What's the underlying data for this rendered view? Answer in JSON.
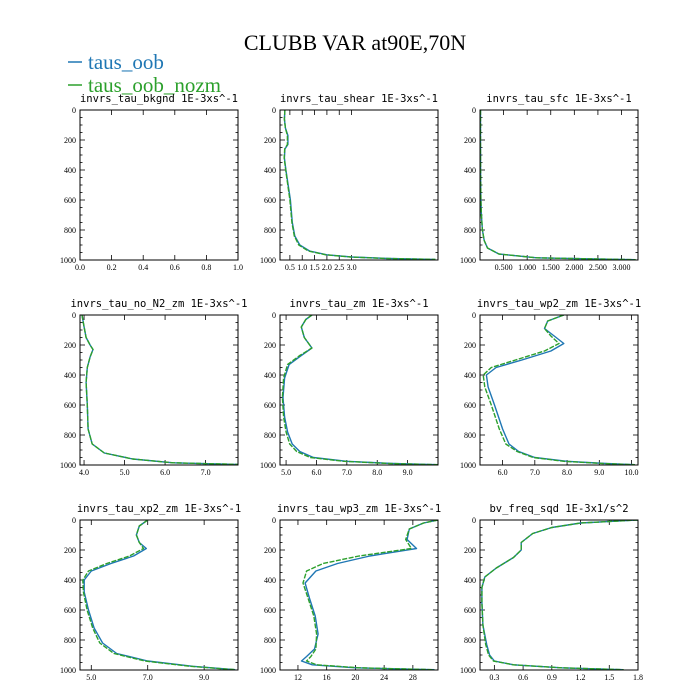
{
  "title": "CLUBB VAR at90E,70N",
  "legend": [
    {
      "label": "taus_oob",
      "color": "#1f77b4"
    },
    {
      "label": "taus_oob_nozm",
      "color": "#2ca02c"
    }
  ],
  "chart_data": [
    {
      "type": "line",
      "title": "invrs_tau_bkgnd   1E-3xs^-1",
      "xlim": [
        0.0,
        1.0
      ],
      "ylim": [
        0,
        1000
      ],
      "y_inverted": true,
      "xtick_labels": [
        {
          "v": 0.0,
          "t": "0.0"
        },
        {
          "v": 0.2,
          "t": "0.2"
        },
        {
          "v": 0.4,
          "t": "0.4"
        },
        {
          "v": 0.6,
          "t": "0.6"
        },
        {
          "v": 0.8,
          "t": "0.8"
        },
        {
          "v": 1.0,
          "t": "1.0"
        }
      ],
      "ytick_labels": [
        0,
        200,
        400,
        600,
        800,
        1000
      ],
      "series": [
        {
          "name": "taus_oob",
          "x": [],
          "y": []
        },
        {
          "name": "taus_oob_nozm",
          "x": [],
          "y": []
        }
      ]
    },
    {
      "type": "line",
      "title": "invrs_tau_shear   1E-3xs^-1",
      "xlim": [
        0.1,
        6.5
      ],
      "ylim": [
        0,
        1000
      ],
      "y_inverted": true,
      "xtick_labels": [
        {
          "v": 0.5,
          "t": "0.5"
        },
        {
          "v": 1.0,
          "t": "1.0"
        },
        {
          "v": 1.5,
          "t": "1.5"
        },
        {
          "v": 2.0,
          "t": "2.0"
        },
        {
          "v": 2.5,
          "t": "2.5"
        },
        {
          "v": 3.0,
          "t": "3.0"
        }
      ],
      "ytick_labels": [
        0,
        200,
        400,
        600,
        800,
        1000
      ],
      "series": [
        {
          "name": "taus_oob",
          "x": [
            0.3,
            0.28,
            0.32,
            0.42,
            0.42,
            0.3,
            0.28,
            0.34,
            0.52,
            0.6,
            0.7,
            0.9,
            1.3,
            2.0,
            3.0,
            4.5,
            6.4
          ],
          "y": [
            0,
            60,
            120,
            170,
            230,
            260,
            320,
            400,
            600,
            750,
            840,
            900,
            940,
            965,
            980,
            990,
            996
          ]
        },
        {
          "name": "taus_oob_nozm",
          "x": [
            0.3,
            0.28,
            0.32,
            0.4,
            0.4,
            0.29,
            0.27,
            0.33,
            0.5,
            0.58,
            0.68,
            0.86,
            1.25,
            1.95,
            2.95,
            4.4,
            6.4
          ],
          "y": [
            0,
            60,
            120,
            170,
            230,
            260,
            320,
            400,
            600,
            750,
            840,
            900,
            940,
            965,
            980,
            990,
            996
          ]
        }
      ]
    },
    {
      "type": "line",
      "title": "invrs_tau_sfc   1E-3xs^-1",
      "xlim": [
        0.0,
        3.35
      ],
      "ylim": [
        0,
        1000
      ],
      "y_inverted": true,
      "xtick_labels": [
        {
          "v": 0.5,
          "t": "0.500"
        },
        {
          "v": 1.0,
          "t": "1.000"
        },
        {
          "v": 1.5,
          "t": "1.500"
        },
        {
          "v": 2.0,
          "t": "2.000"
        },
        {
          "v": 2.5,
          "t": "2.500"
        },
        {
          "v": 3.0,
          "t": "3.000"
        }
      ],
      "ytick_labels": [
        0,
        200,
        400,
        600,
        800,
        1000
      ],
      "series": [
        {
          "name": "taus_oob",
          "x": [
            0.01,
            0.01,
            0.015,
            0.02,
            0.03,
            0.05,
            0.09,
            0.16,
            0.4,
            1.2,
            3.3
          ],
          "y": [
            0,
            300,
            500,
            600,
            700,
            800,
            870,
            920,
            960,
            985,
            998
          ]
        },
        {
          "name": "taus_oob_nozm",
          "x": [
            0.01,
            0.01,
            0.015,
            0.02,
            0.03,
            0.05,
            0.09,
            0.16,
            0.4,
            1.2,
            3.3
          ],
          "y": [
            0,
            300,
            500,
            600,
            700,
            800,
            870,
            920,
            960,
            985,
            998
          ]
        }
      ]
    },
    {
      "type": "line",
      "title": "invrs_tau_no_N2_zm   1E-3xs^-1",
      "xlim": [
        3.9,
        7.8
      ],
      "ylim": [
        0,
        1000
      ],
      "y_inverted": true,
      "xtick_labels": [
        {
          "v": 4.0,
          "t": "4.0"
        },
        {
          "v": 5.0,
          "t": "5.0"
        },
        {
          "v": 6.0,
          "t": "6.0"
        },
        {
          "v": 7.0,
          "t": "7.0"
        }
      ],
      "ytick_labels": [
        0,
        200,
        400,
        600,
        800,
        1000
      ],
      "series": [
        {
          "name": "taus_oob",
          "x": [
            3.95,
            4.0,
            4.05,
            4.15,
            4.22,
            4.15,
            4.08,
            4.05,
            4.08,
            4.1,
            4.2,
            4.5,
            5.2,
            6.2,
            7.8
          ],
          "y": [
            0,
            80,
            150,
            200,
            230,
            280,
            350,
            450,
            600,
            760,
            860,
            920,
            960,
            985,
            996
          ]
        },
        {
          "name": "taus_oob_nozm",
          "x": [
            3.95,
            4.0,
            4.05,
            4.15,
            4.22,
            4.15,
            4.08,
            4.05,
            4.08,
            4.1,
            4.2,
            4.5,
            5.2,
            6.2,
            7.8
          ],
          "y": [
            0,
            80,
            150,
            200,
            230,
            280,
            350,
            450,
            600,
            760,
            860,
            920,
            960,
            985,
            996
          ]
        }
      ]
    },
    {
      "type": "line",
      "title": "invrs_tau_zm   1E-3xs^-1",
      "xlim": [
        4.8,
        10.0
      ],
      "ylim": [
        0,
        1000
      ],
      "y_inverted": true,
      "xtick_labels": [
        {
          "v": 5.0,
          "t": "5.0"
        },
        {
          "v": 6.0,
          "t": "6.0"
        },
        {
          "v": 7.0,
          "t": "7.0"
        },
        {
          "v": 8.0,
          "t": "8.0"
        },
        {
          "v": 9.0,
          "t": "9.0"
        }
      ],
      "ytick_labels": [
        0,
        200,
        400,
        600,
        800,
        1000
      ],
      "series": [
        {
          "name": "taus_oob",
          "x": [
            5.85,
            5.65,
            5.5,
            5.6,
            5.85,
            5.5,
            5.1,
            4.95,
            4.9,
            4.95,
            5.05,
            5.2,
            5.45,
            5.9,
            7.0,
            8.5,
            10.0
          ],
          "y": [
            0,
            30,
            80,
            150,
            220,
            270,
            330,
            420,
            550,
            680,
            780,
            860,
            910,
            950,
            975,
            990,
            998
          ]
        },
        {
          "name": "taus_oob_nozm",
          "x": [
            5.85,
            5.65,
            5.5,
            5.6,
            5.85,
            5.45,
            5.05,
            4.92,
            4.88,
            4.92,
            5.0,
            5.12,
            5.35,
            5.8,
            6.9,
            8.4,
            10.0
          ],
          "y": [
            0,
            30,
            80,
            150,
            220,
            270,
            330,
            420,
            550,
            680,
            780,
            860,
            910,
            950,
            975,
            990,
            998
          ]
        }
      ]
    },
    {
      "type": "line",
      "title": "invrs_tau_wp2_zm   1E-3xs^-1",
      "xlim": [
        5.3,
        10.2
      ],
      "ylim": [
        0,
        1000
      ],
      "y_inverted": true,
      "xtick_labels": [
        {
          "v": 6.0,
          "t": "6.0"
        },
        {
          "v": 7.0,
          "t": "7.0"
        },
        {
          "v": 8.0,
          "t": "8.0"
        },
        {
          "v": 9.0,
          "t": "9.0"
        },
        {
          "v": 10.0,
          "t": "10.0"
        }
      ],
      "ytick_labels": [
        0,
        200,
        400,
        600,
        800,
        1000
      ],
      "series": [
        {
          "name": "taus_oob",
          "x": [
            7.9,
            7.4,
            7.3,
            7.6,
            7.9,
            7.5,
            6.6,
            5.8,
            5.5,
            5.55,
            5.75,
            6.0,
            6.2,
            6.5,
            7.0,
            8.0,
            9.2,
            10.1
          ],
          "y": [
            0,
            40,
            90,
            140,
            190,
            240,
            300,
            350,
            400,
            480,
            600,
            760,
            860,
            910,
            950,
            975,
            990,
            998
          ]
        },
        {
          "name": "taus_oob_nozm",
          "x": [
            7.9,
            7.4,
            7.3,
            7.5,
            7.75,
            7.3,
            6.4,
            5.65,
            5.4,
            5.45,
            5.65,
            5.9,
            6.1,
            6.45,
            6.95,
            7.9,
            9.1,
            10.1
          ],
          "y": [
            0,
            40,
            90,
            140,
            190,
            240,
            300,
            350,
            400,
            480,
            600,
            760,
            860,
            910,
            950,
            975,
            990,
            998
          ]
        }
      ]
    },
    {
      "type": "line",
      "title": "invrs_tau_xp2_zm   1E-3xs^-1",
      "xlim": [
        4.6,
        10.2
      ],
      "ylim": [
        0,
        1000
      ],
      "y_inverted": true,
      "xtick_labels": [
        {
          "v": 5.0,
          "t": "5.0"
        },
        {
          "v": 7.0,
          "t": "7.0"
        },
        {
          "v": 9.0,
          "t": "9.0"
        }
      ],
      "ytick_labels": [
        0,
        200,
        400,
        600,
        800,
        1000
      ],
      "series": [
        {
          "name": "taus_oob",
          "x": [
            7.0,
            6.7,
            6.6,
            6.7,
            6.95,
            6.5,
            5.7,
            5.0,
            4.75,
            4.75,
            4.9,
            5.1,
            5.4,
            5.9,
            7.0,
            8.6,
            10.1
          ],
          "y": [
            0,
            40,
            100,
            150,
            190,
            240,
            290,
            340,
            400,
            480,
            600,
            720,
            820,
            890,
            940,
            975,
            998
          ]
        },
        {
          "name": "taus_oob_nozm",
          "x": [
            7.0,
            6.7,
            6.6,
            6.7,
            6.85,
            6.35,
            5.55,
            4.9,
            4.7,
            4.72,
            4.85,
            5.05,
            5.3,
            5.8,
            6.9,
            8.5,
            10.1
          ],
          "y": [
            0,
            40,
            100,
            150,
            190,
            240,
            290,
            340,
            400,
            480,
            600,
            720,
            820,
            890,
            940,
            975,
            998
          ]
        }
      ]
    },
    {
      "type": "line",
      "title": "invrs_tau_wp3_zm   1E-3xs^-1",
      "xlim": [
        9.5,
        31.5
      ],
      "ylim": [
        0,
        1000
      ],
      "y_inverted": true,
      "xtick_labels": [
        {
          "v": 12,
          "t": "12"
        },
        {
          "v": 16,
          "t": "16"
        },
        {
          "v": 20,
          "t": "20"
        },
        {
          "v": 24,
          "t": "24"
        },
        {
          "v": 28,
          "t": "28"
        }
      ],
      "ytick_labels": [
        0,
        200,
        400,
        600,
        800,
        1000
      ],
      "series": [
        {
          "name": "taus_oob",
          "x": [
            31.5,
            29.5,
            27.5,
            27.2,
            28.5,
            22.0,
            17.5,
            14.5,
            13.0,
            13.6,
            14.4,
            14.8,
            14.3,
            13.2,
            12.5,
            14.0,
            20.0,
            31.0
          ],
          "y": [
            0,
            20,
            60,
            130,
            190,
            240,
            290,
            340,
            420,
            520,
            640,
            760,
            860,
            910,
            940,
            965,
            985,
            998
          ]
        },
        {
          "name": "taus_oob_nozm",
          "x": [
            31.5,
            29.5,
            27.5,
            27.0,
            27.8,
            20.5,
            15.5,
            13.2,
            12.7,
            13.4,
            14.2,
            14.6,
            14.5,
            13.8,
            13.2,
            14.6,
            20.5,
            31.0
          ],
          "y": [
            0,
            20,
            60,
            130,
            190,
            240,
            290,
            340,
            420,
            520,
            640,
            760,
            860,
            910,
            940,
            965,
            985,
            998
          ]
        }
      ]
    },
    {
      "type": "line",
      "title": "bv_freq_sqd   1E-3x1/s^2",
      "xlim": [
        0.15,
        1.8
      ],
      "ylim": [
        0,
        1000
      ],
      "y_inverted": true,
      "xtick_labels": [
        {
          "v": 0.3,
          "t": "0.3"
        },
        {
          "v": 0.6,
          "t": "0.6"
        },
        {
          "v": 0.9,
          "t": "0.9"
        },
        {
          "v": 1.2,
          "t": "1.2"
        },
        {
          "v": 1.5,
          "t": "1.5"
        },
        {
          "v": 1.8,
          "t": "1.8"
        }
      ],
      "ytick_labels": [
        0,
        200,
        400,
        600,
        800,
        1000
      ],
      "series": [
        {
          "name": "taus_oob",
          "x": [
            1.8,
            1.2,
            0.9,
            0.7,
            0.58,
            0.58,
            0.5,
            0.32,
            0.2,
            0.17,
            0.17,
            0.18,
            0.22,
            0.25,
            0.3,
            0.5,
            1.0,
            1.65
          ],
          "y": [
            0,
            20,
            50,
            90,
            150,
            200,
            250,
            320,
            380,
            450,
            550,
            700,
            830,
            900,
            940,
            965,
            985,
            998
          ]
        },
        {
          "name": "taus_oob_nozm",
          "x": [
            1.8,
            1.2,
            0.9,
            0.7,
            0.58,
            0.58,
            0.5,
            0.32,
            0.2,
            0.17,
            0.17,
            0.18,
            0.21,
            0.24,
            0.29,
            0.5,
            1.0,
            1.65
          ],
          "y": [
            0,
            20,
            50,
            90,
            150,
            200,
            250,
            320,
            380,
            450,
            550,
            700,
            830,
            900,
            940,
            965,
            985,
            998
          ]
        }
      ]
    }
  ]
}
